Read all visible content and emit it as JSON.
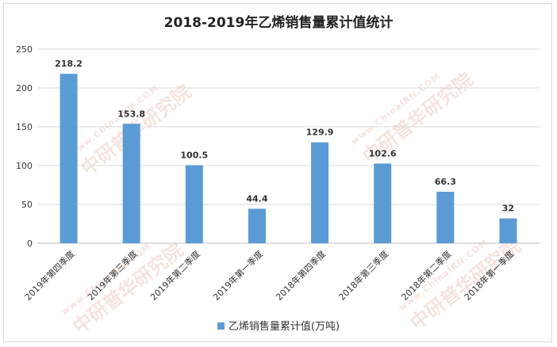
{
  "chart_data": {
    "type": "bar",
    "title": "2018-2019年乙烯销售量累计值统计",
    "categories": [
      "2019年第四季度",
      "2019年第三季度",
      "2019年第二季度",
      "2019年第一季度",
      "2018年第四季度",
      "2018年第三季度",
      "2018年第二季度",
      "2018年第一季度"
    ],
    "series": [
      {
        "name": "乙烯销售量累计值(万吨)",
        "values": [
          218.2,
          153.8,
          100.5,
          44.4,
          129.9,
          102.6,
          66.3,
          32
        ],
        "color": "#5b9bd5"
      }
    ],
    "ylim": [
      0,
      250
    ],
    "yticks": [
      0,
      50,
      100,
      150,
      200,
      250
    ],
    "grid": true,
    "legend_position": "bottom"
  },
  "watermark": {
    "url": "www.ChinaIRN.COM",
    "brand": "中研普华研究院",
    "logo": "CIRN"
  }
}
